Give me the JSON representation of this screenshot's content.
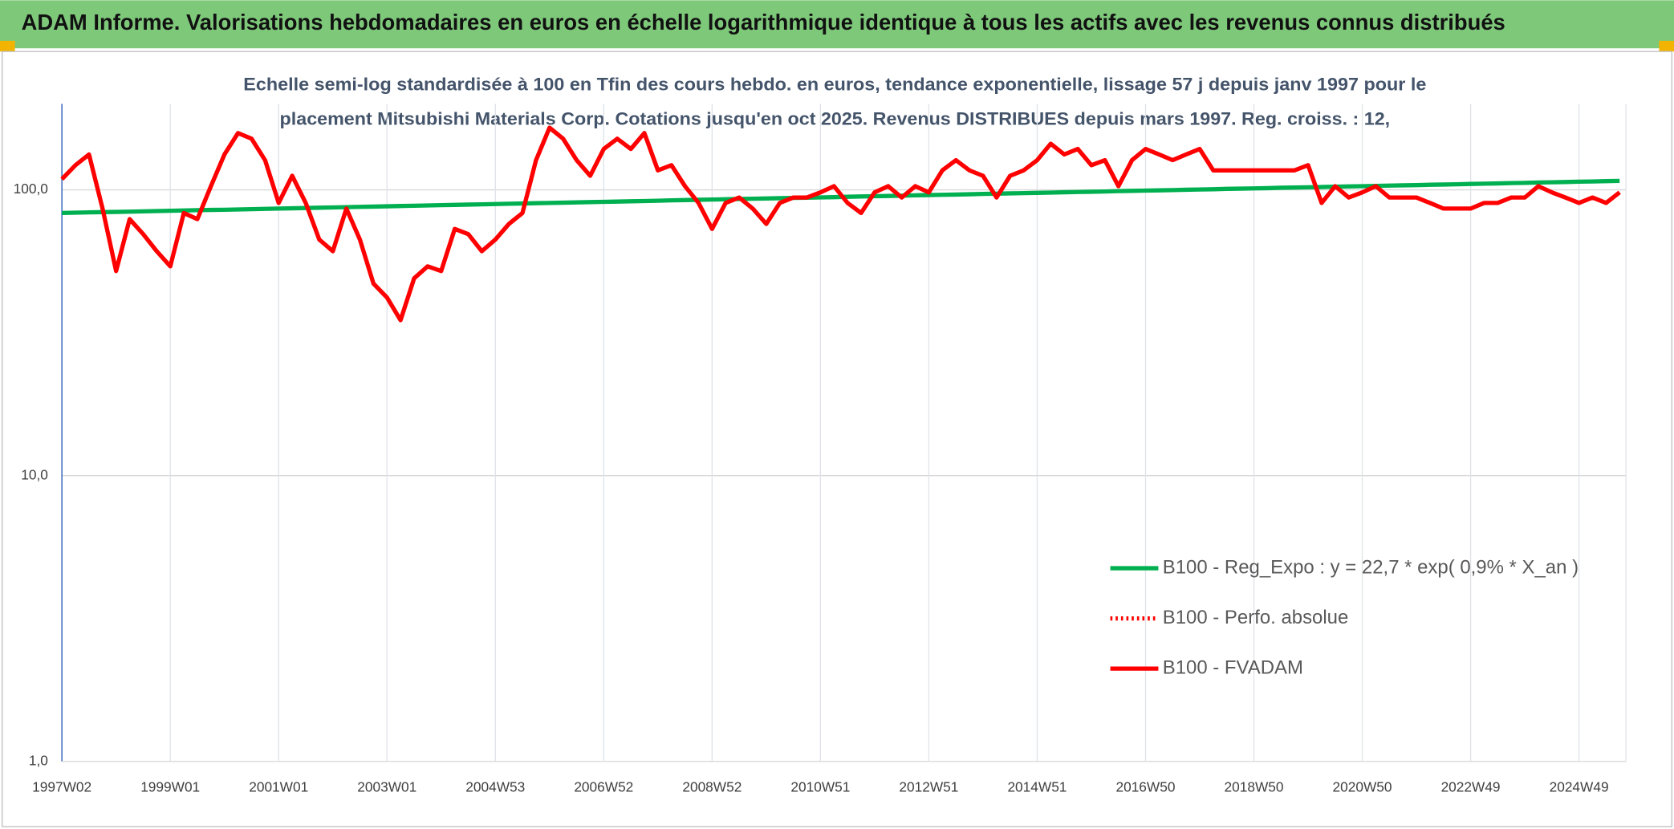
{
  "chart_data": {
    "type": "line",
    "title": "ADAM Informe. Valorisations hebdomadaires en euros en échelle logarithmique identique à tous les actifs avec les revenus connus distribués",
    "subtitle": [
      "Echelle semi-log standardisée à 100 en Tfin des cours hebdo. en euros, tendance exponentielle, lissage 57 j depuis janv 1997 pour le",
      "placement Mitsubishi Materials Corp. Cotations jusqu'en oct 2025. Revenus DISTRIBUES depuis mars 1997. Reg. croiss. : 12,"
    ],
    "log_scale": true,
    "grid": true,
    "ylim": [
      1,
      200
    ],
    "yticks": [
      {
        "value": 1,
        "label": "1,0"
      },
      {
        "value": 10,
        "label": "10,0"
      },
      {
        "value": 100,
        "label": "100,0"
      }
    ],
    "categories": [
      "1997W02",
      null,
      null,
      null,
      null,
      null,
      null,
      null,
      "1999W01",
      null,
      null,
      null,
      null,
      null,
      null,
      null,
      "2001W01",
      null,
      null,
      null,
      null,
      null,
      null,
      null,
      "2003W01",
      null,
      null,
      null,
      null,
      null,
      null,
      null,
      "2004W53",
      null,
      null,
      null,
      null,
      null,
      null,
      null,
      "2006W52",
      null,
      null,
      null,
      null,
      null,
      null,
      null,
      "2008W52",
      null,
      null,
      null,
      null,
      null,
      null,
      null,
      "2010W51",
      null,
      null,
      null,
      null,
      null,
      null,
      null,
      "2012W51",
      null,
      null,
      null,
      null,
      null,
      null,
      null,
      "2014W51",
      null,
      null,
      null,
      null,
      null,
      null,
      null,
      "2016W50",
      null,
      null,
      null,
      null,
      null,
      null,
      null,
      "2018W50",
      null,
      null,
      null,
      null,
      null,
      null,
      null,
      "2020W50",
      null,
      null,
      null,
      null,
      null,
      null,
      null,
      "2022W49",
      null,
      null,
      null,
      null,
      null,
      null,
      null,
      "2024W49",
      null,
      null,
      null
    ],
    "series": [
      {
        "name": "B100 - Reg_Expo : y = 22,7 * exp( 0,9% *  X_an )",
        "color": "#00b050",
        "style": "solid",
        "values": [
          83.0,
          83.2,
          83.4,
          83.6,
          83.7,
          83.9,
          84.1,
          84.3,
          84.5,
          84.7,
          84.9,
          85.1,
          85.2,
          85.4,
          85.6,
          85.8,
          86.0,
          86.2,
          86.4,
          86.6,
          86.8,
          87.0,
          87.2,
          87.4,
          87.6,
          87.8,
          88.0,
          88.2,
          88.4,
          88.6,
          88.8,
          89.0,
          89.2,
          89.4,
          89.6,
          89.8,
          90.0,
          90.2,
          90.4,
          90.6,
          90.8,
          91.0,
          91.2,
          91.4,
          91.6,
          91.9,
          92.1,
          92.3,
          92.5,
          92.7,
          92.9,
          93.1,
          93.3,
          93.5,
          93.7,
          93.9,
          94.1,
          94.3,
          94.6,
          94.8,
          95.0,
          95.2,
          95.4,
          95.7,
          95.9,
          96.1,
          96.3,
          96.5,
          96.8,
          97.0,
          97.2,
          97.4,
          97.6,
          97.8,
          98.1,
          98.3,
          98.5,
          98.7,
          99.0,
          99.2,
          99.4,
          99.6,
          99.8,
          100.1,
          100.3,
          100.5,
          100.8,
          101.0,
          101.2,
          101.4,
          101.7,
          101.9,
          102.1,
          102.3,
          102.6,
          102.8,
          103.0,
          103.2,
          103.5,
          103.7,
          103.9,
          104.2,
          104.4,
          104.6,
          104.9,
          105.1,
          105.3,
          105.6,
          105.8,
          106.1,
          106.3,
          106.5,
          106.8,
          107.0,
          107.3,
          107.5
        ]
      },
      {
        "name": "B100 - Perfo. absolue",
        "color": "#ff0000",
        "style": "dotted",
        "values": [
          109,
          122,
          133,
          86,
          52,
          79,
          70,
          61,
          54,
          83,
          79,
          103,
          133,
          158,
          151,
          127,
          90,
          112,
          90,
          67,
          61,
          86,
          67,
          47,
          42,
          35,
          49,
          54,
          52,
          73,
          70,
          61,
          67,
          76,
          83,
          127,
          165,
          151,
          127,
          112,
          139,
          151,
          139,
          158,
          117,
          122,
          103,
          90,
          73,
          90,
          94,
          86,
          76,
          90,
          94,
          94,
          98,
          103,
          90,
          83,
          98,
          103,
          94,
          103,
          98,
          117,
          127,
          117,
          112,
          94,
          112,
          117,
          127,
          145,
          133,
          139,
          122,
          127,
          103,
          127,
          139,
          133,
          127,
          133,
          139,
          117,
          117,
          117,
          117,
          117,
          117,
          117,
          122,
          90,
          103,
          94,
          98,
          103,
          94,
          94,
          94,
          90,
          86,
          86,
          86,
          90,
          90,
          94,
          94,
          103,
          98,
          94,
          90,
          94,
          90,
          98
        ]
      },
      {
        "name": "B100 - FVADAM",
        "color": "#ff0000",
        "style": "solid",
        "values": [
          109,
          122,
          133,
          86,
          52,
          79,
          70,
          61,
          54,
          83,
          79,
          103,
          133,
          158,
          151,
          127,
          90,
          112,
          90,
          67,
          61,
          86,
          67,
          47,
          42,
          35,
          49,
          54,
          52,
          73,
          70,
          61,
          67,
          76,
          83,
          127,
          165,
          151,
          127,
          112,
          139,
          151,
          139,
          158,
          117,
          122,
          103,
          90,
          73,
          90,
          94,
          86,
          76,
          90,
          94,
          94,
          98,
          103,
          90,
          83,
          98,
          103,
          94,
          103,
          98,
          117,
          127,
          117,
          112,
          94,
          112,
          117,
          127,
          145,
          133,
          139,
          122,
          127,
          103,
          127,
          139,
          133,
          127,
          133,
          139,
          117,
          117,
          117,
          117,
          117,
          117,
          117,
          122,
          90,
          103,
          94,
          98,
          103,
          94,
          94,
          94,
          90,
          86,
          86,
          86,
          90,
          90,
          94,
          94,
          103,
          98,
          94,
          90,
          94,
          90,
          98
        ]
      }
    ]
  }
}
